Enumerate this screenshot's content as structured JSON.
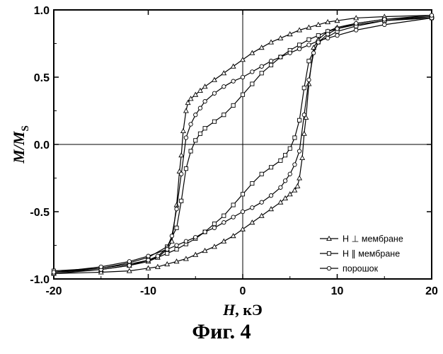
{
  "caption": "Фиг. 4",
  "chart_data": {
    "type": "line",
    "xlabel": {
      "main": "H",
      "rest": ", кЭ"
    },
    "ylabel": {
      "main": "M/M",
      "sub": "S"
    },
    "xlim": [
      -20,
      20
    ],
    "ylim": [
      -1.0,
      1.0
    ],
    "xticks": [
      -20,
      -10,
      0,
      10,
      20
    ],
    "yticks": [
      -1.0,
      -0.5,
      0.0,
      0.5,
      1.0
    ],
    "xtick_labels": [
      "-20",
      "-10",
      "0",
      "10",
      "20"
    ],
    "ytick_labels": [
      "-1.0",
      "-0.5",
      "0.0",
      "0.5",
      "1.0"
    ],
    "zero_lines": true,
    "legend_position": "bottom-right",
    "series": [
      {
        "name": "H ⊥ мембране",
        "marker": "triangle",
        "color": "#000000",
        "upper_branch": {
          "x": [
            -20,
            -15,
            -12,
            -10,
            -9,
            -8,
            -7.5,
            -7,
            -6.7,
            -6.5,
            -6.3,
            -6,
            -5.8,
            -5.5,
            -5,
            -4.5,
            -4,
            -3,
            -2,
            -1,
            0,
            1,
            2,
            3,
            4,
            5,
            6,
            7,
            8,
            9,
            10,
            12,
            15,
            20
          ],
          "y": [
            -0.95,
            -0.93,
            -0.9,
            -0.87,
            -0.84,
            -0.78,
            -0.72,
            -0.45,
            -0.2,
            -0.08,
            0.1,
            0.25,
            0.31,
            0.34,
            0.37,
            0.4,
            0.43,
            0.48,
            0.53,
            0.58,
            0.63,
            0.68,
            0.72,
            0.76,
            0.79,
            0.82,
            0.85,
            0.87,
            0.89,
            0.91,
            0.92,
            0.94,
            0.95,
            0.96
          ]
        },
        "lower_branch": {
          "x": [
            -20,
            -15,
            -12,
            -10,
            -9,
            -8,
            -7,
            -6,
            -5,
            -4,
            -3,
            -2,
            -1,
            0,
            1,
            2,
            3,
            4,
            4.5,
            5,
            5.5,
            5.8,
            6,
            6.3,
            6.5,
            6.7,
            7,
            7.5,
            8,
            9,
            10,
            12,
            15,
            20
          ],
          "y": [
            -0.96,
            -0.95,
            -0.94,
            -0.92,
            -0.91,
            -0.89,
            -0.87,
            -0.85,
            -0.82,
            -0.79,
            -0.76,
            -0.72,
            -0.68,
            -0.63,
            -0.58,
            -0.53,
            -0.48,
            -0.43,
            -0.4,
            -0.37,
            -0.34,
            -0.31,
            -0.25,
            -0.1,
            0.08,
            0.2,
            0.45,
            0.72,
            0.78,
            0.84,
            0.87,
            0.9,
            0.93,
            0.95
          ]
        }
      },
      {
        "name": "H ∥ мембране",
        "marker": "square",
        "color": "#000000",
        "upper_branch": {
          "x": [
            -20,
            -15,
            -12,
            -10,
            -8,
            -7,
            -6.5,
            -6,
            -5.5,
            -5,
            -4.5,
            -4,
            -3,
            -2,
            -1,
            0,
            1,
            2,
            3,
            4,
            5,
            6,
            7,
            8,
            9,
            10,
            12,
            15,
            20
          ],
          "y": [
            -0.95,
            -0.92,
            -0.88,
            -0.84,
            -0.76,
            -0.62,
            -0.42,
            -0.18,
            -0.05,
            0.03,
            0.08,
            0.12,
            0.17,
            0.22,
            0.29,
            0.37,
            0.45,
            0.53,
            0.59,
            0.65,
            0.7,
            0.74,
            0.78,
            0.81,
            0.84,
            0.86,
            0.89,
            0.92,
            0.94
          ]
        },
        "lower_branch": {
          "x": [
            -20,
            -15,
            -12,
            -10,
            -9,
            -8,
            -7,
            -6,
            -5,
            -4,
            -3,
            -2,
            -1,
            0,
            1,
            2,
            3,
            4,
            4.5,
            5,
            5.5,
            6,
            6.5,
            7,
            8,
            10,
            12,
            15,
            20
          ],
          "y": [
            -0.94,
            -0.92,
            -0.89,
            -0.86,
            -0.84,
            -0.81,
            -0.78,
            -0.74,
            -0.7,
            -0.65,
            -0.59,
            -0.53,
            -0.45,
            -0.37,
            -0.29,
            -0.22,
            -0.17,
            -0.12,
            -0.08,
            -0.03,
            0.05,
            0.18,
            0.42,
            0.62,
            0.76,
            0.84,
            0.88,
            0.92,
            0.95
          ]
        }
      },
      {
        "name": "порошок",
        "marker": "circle",
        "color": "#000000",
        "upper_branch": {
          "x": [
            -20,
            -15,
            -12,
            -10,
            -9,
            -8,
            -7.5,
            -7,
            -6.5,
            -6,
            -5.5,
            -5,
            -4.5,
            -4,
            -3,
            -2,
            -1,
            0,
            1,
            2,
            3,
            4,
            5,
            6,
            7,
            8,
            9,
            10,
            12,
            15,
            20
          ],
          "y": [
            -0.96,
            -0.93,
            -0.9,
            -0.86,
            -0.83,
            -0.77,
            -0.68,
            -0.48,
            -0.22,
            0.05,
            0.15,
            0.22,
            0.27,
            0.32,
            0.38,
            0.43,
            0.47,
            0.5,
            0.54,
            0.58,
            0.62,
            0.65,
            0.68,
            0.71,
            0.74,
            0.77,
            0.79,
            0.81,
            0.85,
            0.89,
            0.94
          ]
        },
        "lower_branch": {
          "x": [
            -20,
            -15,
            -12,
            -10,
            -8,
            -7,
            -6,
            -5,
            -4,
            -3,
            -2,
            -1,
            0,
            1,
            2,
            3,
            4,
            4.5,
            5,
            5.5,
            6,
            6.5,
            7,
            7.5,
            8,
            9,
            10,
            12,
            15,
            20
          ],
          "y": [
            -0.95,
            -0.91,
            -0.87,
            -0.83,
            -0.78,
            -0.75,
            -0.72,
            -0.69,
            -0.65,
            -0.62,
            -0.58,
            -0.54,
            -0.5,
            -0.47,
            -0.43,
            -0.38,
            -0.32,
            -0.27,
            -0.22,
            -0.15,
            -0.05,
            0.22,
            0.48,
            0.68,
            0.76,
            0.82,
            0.86,
            0.9,
            0.93,
            0.96
          ]
        }
      }
    ]
  }
}
